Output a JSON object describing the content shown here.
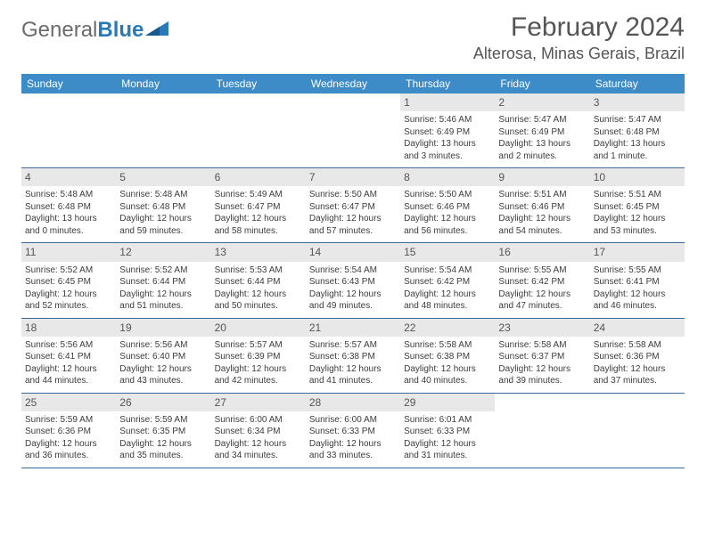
{
  "logo": {
    "text1": "General",
    "text2": "Blue"
  },
  "header": {
    "month_title": "February 2024",
    "location": "Alterosa, Minas Gerais, Brazil"
  },
  "colors": {
    "header_bg": "#3d8bc7",
    "week_divider": "#3d6a9a",
    "daynum_bg": "#e8e8e8",
    "logo_accent": "#2a7ab8"
  },
  "weekdays": [
    "Sunday",
    "Monday",
    "Tuesday",
    "Wednesday",
    "Thursday",
    "Friday",
    "Saturday"
  ],
  "weeks": [
    [
      null,
      null,
      null,
      null,
      {
        "day": "1",
        "sunrise": "Sunrise: 5:46 AM",
        "sunset": "Sunset: 6:49 PM",
        "daylight": "Daylight: 13 hours and 3 minutes."
      },
      {
        "day": "2",
        "sunrise": "Sunrise: 5:47 AM",
        "sunset": "Sunset: 6:49 PM",
        "daylight": "Daylight: 13 hours and 2 minutes."
      },
      {
        "day": "3",
        "sunrise": "Sunrise: 5:47 AM",
        "sunset": "Sunset: 6:48 PM",
        "daylight": "Daylight: 13 hours and 1 minute."
      }
    ],
    [
      {
        "day": "4",
        "sunrise": "Sunrise: 5:48 AM",
        "sunset": "Sunset: 6:48 PM",
        "daylight": "Daylight: 13 hours and 0 minutes."
      },
      {
        "day": "5",
        "sunrise": "Sunrise: 5:48 AM",
        "sunset": "Sunset: 6:48 PM",
        "daylight": "Daylight: 12 hours and 59 minutes."
      },
      {
        "day": "6",
        "sunrise": "Sunrise: 5:49 AM",
        "sunset": "Sunset: 6:47 PM",
        "daylight": "Daylight: 12 hours and 58 minutes."
      },
      {
        "day": "7",
        "sunrise": "Sunrise: 5:50 AM",
        "sunset": "Sunset: 6:47 PM",
        "daylight": "Daylight: 12 hours and 57 minutes."
      },
      {
        "day": "8",
        "sunrise": "Sunrise: 5:50 AM",
        "sunset": "Sunset: 6:46 PM",
        "daylight": "Daylight: 12 hours and 56 minutes."
      },
      {
        "day": "9",
        "sunrise": "Sunrise: 5:51 AM",
        "sunset": "Sunset: 6:46 PM",
        "daylight": "Daylight: 12 hours and 54 minutes."
      },
      {
        "day": "10",
        "sunrise": "Sunrise: 5:51 AM",
        "sunset": "Sunset: 6:45 PM",
        "daylight": "Daylight: 12 hours and 53 minutes."
      }
    ],
    [
      {
        "day": "11",
        "sunrise": "Sunrise: 5:52 AM",
        "sunset": "Sunset: 6:45 PM",
        "daylight": "Daylight: 12 hours and 52 minutes."
      },
      {
        "day": "12",
        "sunrise": "Sunrise: 5:52 AM",
        "sunset": "Sunset: 6:44 PM",
        "daylight": "Daylight: 12 hours and 51 minutes."
      },
      {
        "day": "13",
        "sunrise": "Sunrise: 5:53 AM",
        "sunset": "Sunset: 6:44 PM",
        "daylight": "Daylight: 12 hours and 50 minutes."
      },
      {
        "day": "14",
        "sunrise": "Sunrise: 5:54 AM",
        "sunset": "Sunset: 6:43 PM",
        "daylight": "Daylight: 12 hours and 49 minutes."
      },
      {
        "day": "15",
        "sunrise": "Sunrise: 5:54 AM",
        "sunset": "Sunset: 6:42 PM",
        "daylight": "Daylight: 12 hours and 48 minutes."
      },
      {
        "day": "16",
        "sunrise": "Sunrise: 5:55 AM",
        "sunset": "Sunset: 6:42 PM",
        "daylight": "Daylight: 12 hours and 47 minutes."
      },
      {
        "day": "17",
        "sunrise": "Sunrise: 5:55 AM",
        "sunset": "Sunset: 6:41 PM",
        "daylight": "Daylight: 12 hours and 46 minutes."
      }
    ],
    [
      {
        "day": "18",
        "sunrise": "Sunrise: 5:56 AM",
        "sunset": "Sunset: 6:41 PM",
        "daylight": "Daylight: 12 hours and 44 minutes."
      },
      {
        "day": "19",
        "sunrise": "Sunrise: 5:56 AM",
        "sunset": "Sunset: 6:40 PM",
        "daylight": "Daylight: 12 hours and 43 minutes."
      },
      {
        "day": "20",
        "sunrise": "Sunrise: 5:57 AM",
        "sunset": "Sunset: 6:39 PM",
        "daylight": "Daylight: 12 hours and 42 minutes."
      },
      {
        "day": "21",
        "sunrise": "Sunrise: 5:57 AM",
        "sunset": "Sunset: 6:38 PM",
        "daylight": "Daylight: 12 hours and 41 minutes."
      },
      {
        "day": "22",
        "sunrise": "Sunrise: 5:58 AM",
        "sunset": "Sunset: 6:38 PM",
        "daylight": "Daylight: 12 hours and 40 minutes."
      },
      {
        "day": "23",
        "sunrise": "Sunrise: 5:58 AM",
        "sunset": "Sunset: 6:37 PM",
        "daylight": "Daylight: 12 hours and 39 minutes."
      },
      {
        "day": "24",
        "sunrise": "Sunrise: 5:58 AM",
        "sunset": "Sunset: 6:36 PM",
        "daylight": "Daylight: 12 hours and 37 minutes."
      }
    ],
    [
      {
        "day": "25",
        "sunrise": "Sunrise: 5:59 AM",
        "sunset": "Sunset: 6:36 PM",
        "daylight": "Daylight: 12 hours and 36 minutes."
      },
      {
        "day": "26",
        "sunrise": "Sunrise: 5:59 AM",
        "sunset": "Sunset: 6:35 PM",
        "daylight": "Daylight: 12 hours and 35 minutes."
      },
      {
        "day": "27",
        "sunrise": "Sunrise: 6:00 AM",
        "sunset": "Sunset: 6:34 PM",
        "daylight": "Daylight: 12 hours and 34 minutes."
      },
      {
        "day": "28",
        "sunrise": "Sunrise: 6:00 AM",
        "sunset": "Sunset: 6:33 PM",
        "daylight": "Daylight: 12 hours and 33 minutes."
      },
      {
        "day": "29",
        "sunrise": "Sunrise: 6:01 AM",
        "sunset": "Sunset: 6:33 PM",
        "daylight": "Daylight: 12 hours and 31 minutes."
      },
      null,
      null
    ]
  ]
}
